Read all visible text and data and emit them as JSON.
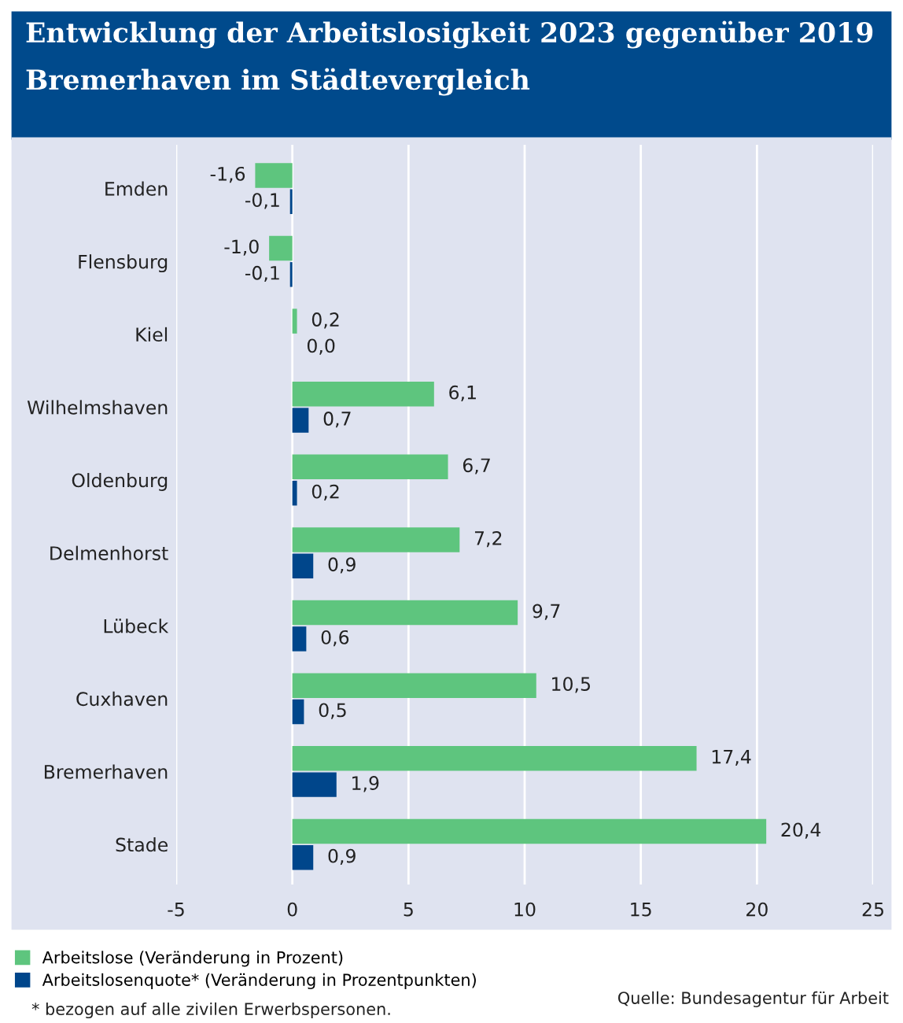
{
  "chart_data": {
    "type": "bar",
    "orientation": "horizontal",
    "title": "Entwicklung der Arbeitslosigkeit 2023 gegenüber 2019",
    "subtitle": "Bremerhaven im Städtevergleich",
    "categories": [
      "Emden",
      "Flensburg",
      "Kiel",
      "Wilhelmshaven",
      "Oldenburg",
      "Delmenhorst",
      "Lübeck",
      "Cuxhaven",
      "Bremerhaven",
      "Stade"
    ],
    "series": [
      {
        "name": "Arbeitslose (Veränderung in Prozent)",
        "color": "#5ec57e",
        "values": [
          -1.6,
          -1.0,
          0.2,
          6.1,
          6.7,
          7.2,
          9.7,
          10.5,
          17.4,
          20.4
        ],
        "value_labels": [
          "-1,6",
          "-1,0",
          "0,2",
          "6,1",
          "6,7",
          "7,2",
          "9,7",
          "10,5",
          "17,4",
          "20,4"
        ]
      },
      {
        "name": "Arbeitslosenquote* (Veränderung in Prozentpunkten)",
        "color": "#00468b",
        "values": [
          -0.1,
          -0.1,
          0.0,
          0.7,
          0.2,
          0.9,
          0.6,
          0.5,
          1.9,
          0.9
        ],
        "value_labels": [
          "-0,1",
          "-0,1",
          "0,0",
          "0,7",
          "0,2",
          "0,9",
          "0,6",
          "0,5",
          "1,9",
          "0,9"
        ]
      }
    ],
    "xlim": [
      -5,
      25
    ],
    "xticks": [
      -5,
      0,
      5,
      10,
      15,
      20,
      25
    ],
    "grid": "x",
    "legend": "bottom left",
    "annotations": [
      "* bezogen auf alle zivilen Erwerbspersonen.",
      "Quelle: Bundesagentur für Arbeit"
    ]
  }
}
